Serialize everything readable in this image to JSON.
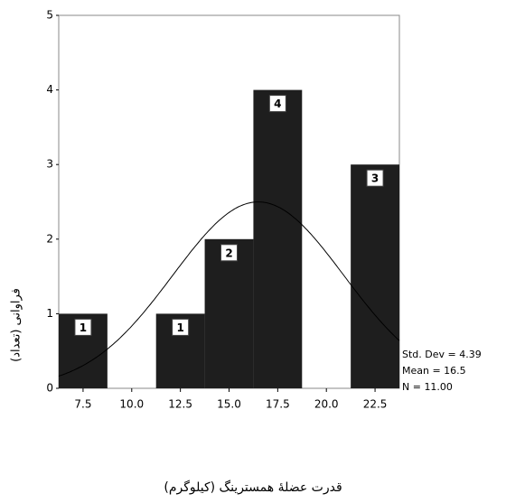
{
  "chart_data": {
    "type": "histogram",
    "x_label": "قدرت عضلهٔ همسترینگ (کیلوگرم)",
    "y_label": "فراوانی (تعداد)",
    "bins": [
      6.25,
      8.75,
      11.25,
      13.75,
      16.25,
      18.75,
      21.25,
      23.75
    ],
    "counts": [
      1,
      0,
      1,
      2,
      4,
      0,
      3
    ],
    "color": "#1e1e1e",
    "xlim": [
      6.25,
      23.75
    ],
    "xticks": [
      7.5,
      {
        "value": 10,
        "label": "10.0"
      },
      12.5,
      {
        "value": 15,
        "label": "15.0"
      },
      17.5,
      {
        "value": 20,
        "label": "20.0"
      },
      22.5
    ],
    "ylim": [
      0,
      5
    ],
    "yticks": [
      0,
      1,
      2,
      3,
      4,
      5
    ],
    "normal_curve": {
      "mean": 16.5,
      "std_dev": 4.39,
      "n": 11,
      "color": "#000000"
    },
    "annotations": [
      "Std. Dev = 4.39",
      "Mean = 16.5",
      "N = 11.00"
    ]
  }
}
